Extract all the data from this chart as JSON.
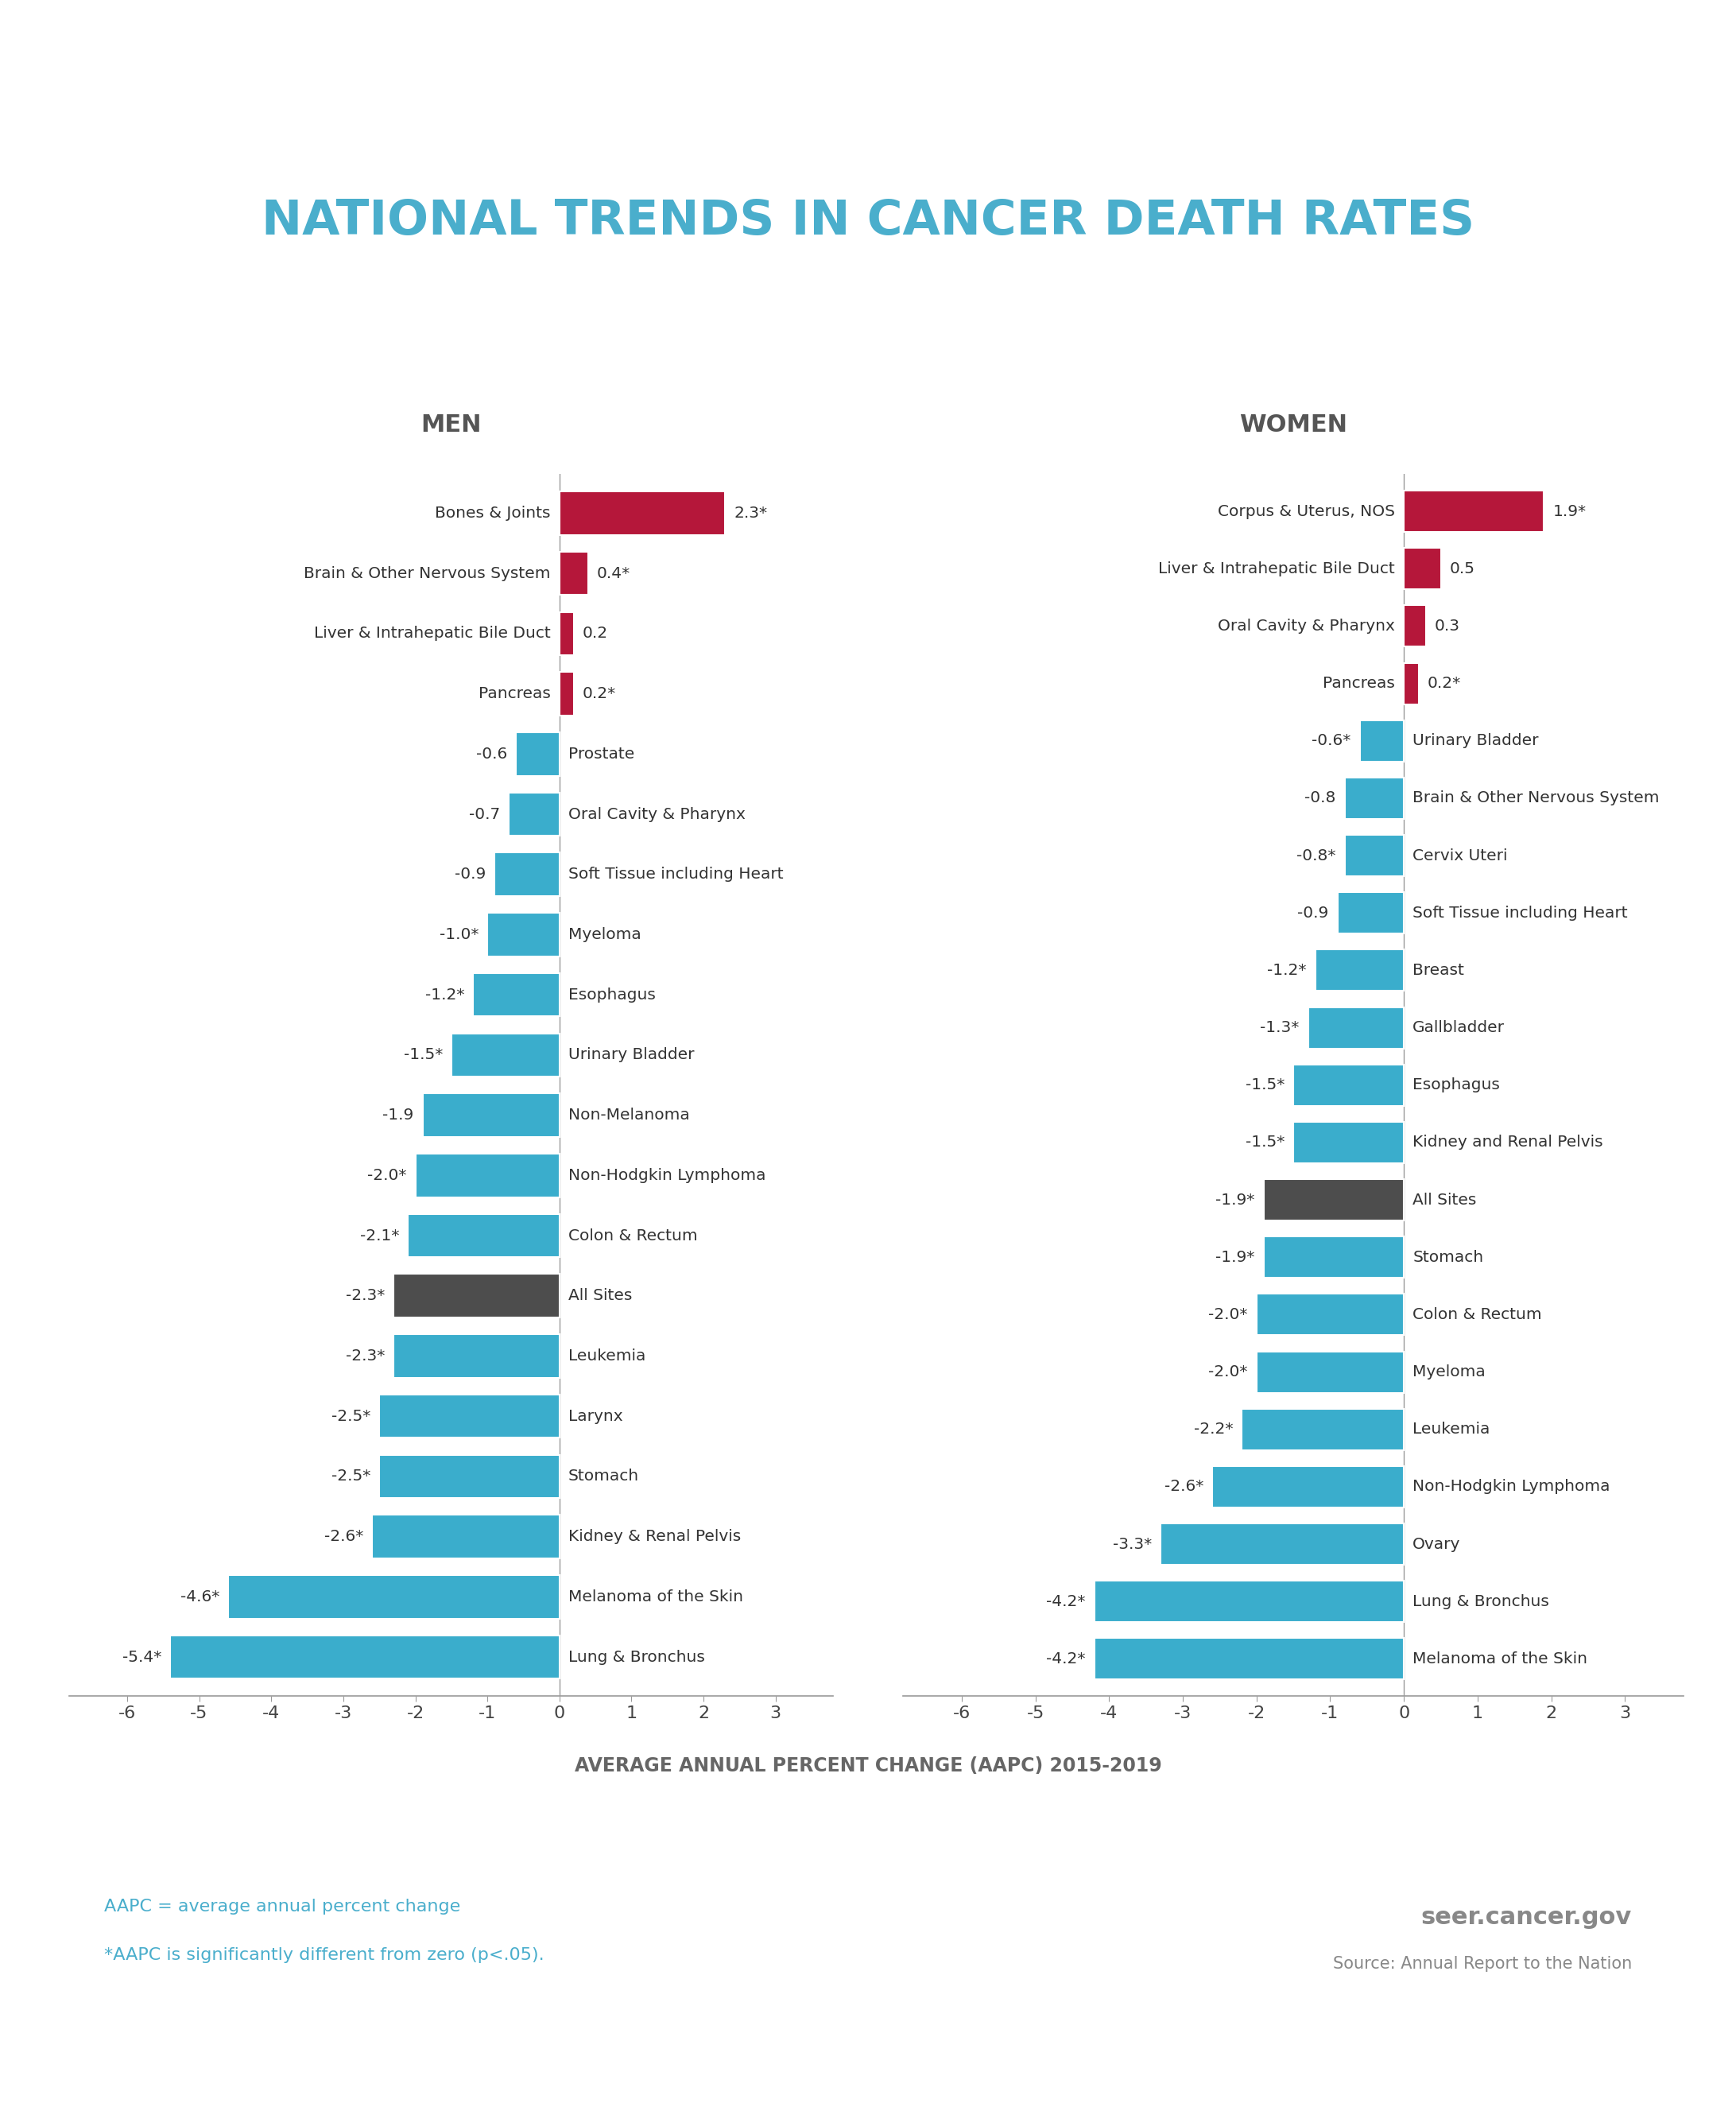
{
  "title": "NATIONAL TRENDS IN CANCER DEATH RATES",
  "subtitle_men": "MEN",
  "subtitle_women": "WOMEN",
  "xlabel": "AVERAGE ANNUAL PERCENT CHANGE (AAPC) 2015-2019",
  "men": {
    "labels": [
      "Bones & Joints",
      "Brain & Other Nervous System",
      "Liver & Intrahepatic Bile Duct",
      "Pancreas",
      "Prostate",
      "Oral Cavity & Pharynx",
      "Soft Tissue including Heart",
      "Myeloma",
      "Esophagus",
      "Urinary Bladder",
      "Non-Melanoma",
      "Non-Hodgkin Lymphoma",
      "Colon & Rectum",
      "All Sites",
      "Leukemia",
      "Larynx",
      "Stomach",
      "Kidney & Renal Pelvis",
      "Melanoma of the Skin",
      "Lung & Bronchus"
    ],
    "values": [
      2.3,
      0.4,
      0.2,
      0.2,
      -0.6,
      -0.7,
      -0.9,
      -1.0,
      -1.2,
      -1.5,
      -1.9,
      -2.0,
      -2.1,
      -2.3,
      -2.3,
      -2.5,
      -2.5,
      -2.6,
      -4.6,
      -5.4
    ],
    "annotations": [
      "2.3*",
      "0.4*",
      "0.2",
      "0.2*",
      "-0.6",
      "-0.7",
      "-0.9",
      "-1.0*",
      "-1.2*",
      "-1.5*",
      "-1.9",
      "-2.0*",
      "-2.1*",
      "-2.3*",
      "-2.3*",
      "-2.5*",
      "-2.5*",
      "-2.6*",
      "-4.6*",
      "-5.4*"
    ],
    "colors": [
      "#b5173a",
      "#b5173a",
      "#b5173a",
      "#b5173a",
      "#3aadcc",
      "#3aadcc",
      "#3aadcc",
      "#3aadcc",
      "#3aadcc",
      "#3aadcc",
      "#3aadcc",
      "#3aadcc",
      "#3aadcc",
      "#4d4d4d",
      "#3aadcc",
      "#3aadcc",
      "#3aadcc",
      "#3aadcc",
      "#3aadcc",
      "#3aadcc"
    ]
  },
  "women": {
    "labels": [
      "Corpus & Uterus, NOS",
      "Liver & Intrahepatic Bile Duct",
      "Oral Cavity & Pharynx",
      "Pancreas",
      "Urinary Bladder",
      "Brain & Other Nervous System",
      "Cervix Uteri",
      "Soft Tissue including Heart",
      "Breast",
      "Gallbladder",
      "Esophagus",
      "Kidney and Renal Pelvis",
      "All Sites",
      "Stomach",
      "Colon & Rectum",
      "Myeloma",
      "Leukemia",
      "Non-Hodgkin Lymphoma",
      "Ovary",
      "Lung & Bronchus",
      "Melanoma of the Skin"
    ],
    "values": [
      1.9,
      0.5,
      0.3,
      0.2,
      -0.6,
      -0.8,
      -0.8,
      -0.9,
      -1.2,
      -1.3,
      -1.5,
      -1.5,
      -1.9,
      -1.9,
      -2.0,
      -2.0,
      -2.2,
      -2.6,
      -3.3,
      -4.2,
      -4.2
    ],
    "annotations": [
      "1.9*",
      "0.5",
      "0.3",
      "0.2*",
      "-0.6*",
      "-0.8",
      "-0.8*",
      "-0.9",
      "-1.2*",
      "-1.3*",
      "-1.5*",
      "-1.5*",
      "-1.9*",
      "-1.9*",
      "-2.0*",
      "-2.0*",
      "-2.2*",
      "-2.6*",
      "-3.3*",
      "-4.2*",
      "-4.2*"
    ],
    "colors": [
      "#b5173a",
      "#b5173a",
      "#b5173a",
      "#b5173a",
      "#3aadcc",
      "#3aadcc",
      "#3aadcc",
      "#3aadcc",
      "#3aadcc",
      "#3aadcc",
      "#3aadcc",
      "#3aadcc",
      "#4d4d4d",
      "#3aadcc",
      "#3aadcc",
      "#3aadcc",
      "#3aadcc",
      "#3aadcc",
      "#3aadcc",
      "#3aadcc",
      "#3aadcc"
    ]
  },
  "title_color": "#4aaecc",
  "subtitle_color": "#555555",
  "label_color": "#333333",
  "background_color": "#ffffff",
  "bar_height": 0.72,
  "xlim": [
    -6.8,
    3.8
  ],
  "xticks": [
    -6,
    -5,
    -4,
    -3,
    -2,
    -1,
    0,
    1,
    2,
    3
  ],
  "footer_line1": "AAPC = average annual percent change",
  "footer_line2": "*AAPC is significantly different from zero (p<.05).",
  "footer_color": "#4aaecc",
  "source_text": "seer.cancer.gov",
  "source_sub": "Source: Annual Report to the Nation"
}
